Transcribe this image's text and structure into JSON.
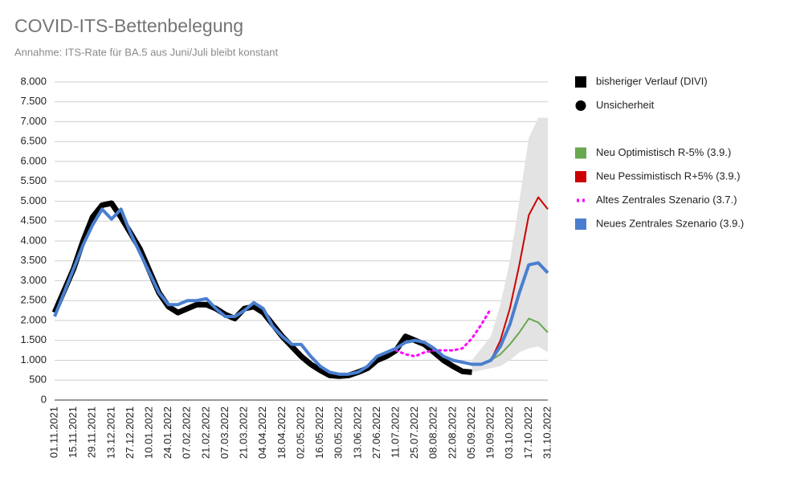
{
  "chart_data": {
    "type": "line",
    "title": "COVID-ITS-Bettenbelegung",
    "subtitle": "Annahme: ITS-Rate für BA.5 aus Juni/Juli bleibt konstant",
    "categories": [
      "01.11.2021",
      null,
      "15.11.2021",
      null,
      "29.11.2021",
      null,
      "13.12.2021",
      null,
      "27.12.2021",
      null,
      "10.01.2022",
      null,
      "24.01.2022",
      null,
      "07.02.2022",
      null,
      "21.02.2022",
      null,
      "07.03.2022",
      null,
      "21.03.2022",
      null,
      "04.04.2022",
      null,
      "18.04.2022",
      null,
      "02.05.2022",
      null,
      "16.05.2022",
      null,
      "30.05.2022",
      null,
      "13.06.2022",
      null,
      "27.06.2022",
      null,
      "11.07.2022",
      null,
      "25.07.2022",
      null,
      "08.08.2022",
      null,
      "22.08.2022",
      null,
      "05.09.2022",
      null,
      "19.09.2022",
      null,
      "03.10.2022",
      null,
      "17.10.2022",
      null,
      "31.10.2022"
    ],
    "ylim": [
      0,
      8000
    ],
    "yticks": [
      0,
      500,
      {
        "value": 1000,
        "label": "1.000"
      },
      {
        "value": 1500,
        "label": "1.500"
      },
      {
        "value": 2000,
        "label": "2.000"
      },
      {
        "value": 2500,
        "label": "2.500"
      },
      {
        "value": 3000,
        "label": "3.000"
      },
      {
        "value": 3500,
        "label": "3.500"
      },
      {
        "value": 4000,
        "label": "4.000"
      },
      {
        "value": 4500,
        "label": "4.500"
      },
      {
        "value": 5000,
        "label": "5.000"
      },
      {
        "value": 5500,
        "label": "5.500"
      },
      {
        "value": 6000,
        "label": "6.000"
      },
      {
        "value": 6500,
        "label": "6.500"
      },
      {
        "value": 7000,
        "label": "7.000"
      },
      {
        "value": 7500,
        "label": "7.500"
      },
      {
        "value": 8000,
        "label": "8.000"
      }
    ],
    "grid": true,
    "legend": "right",
    "series": [
      {
        "name": "bisheriger Verlauf (DIVI)",
        "color": "#000000",
        "legend_marker": "square",
        "values": [
          2200,
          2750,
          3300,
          4000,
          4600,
          4900,
          4950,
          4600,
          4200,
          3800,
          3250,
          2700,
          2350,
          2200,
          2300,
          2400,
          2400,
          2300,
          2150,
          2050,
          2300,
          2350,
          2200,
          1900,
          1600,
          1350,
          1100,
          900,
          750,
          620,
          600,
          620,
          700,
          800,
          1000,
          1100,
          1250,
          1600,
          1500,
          1400,
          1200,
          1000,
          850,
          720,
          700,
          null,
          null,
          null,
          null,
          null,
          null,
          null,
          null
        ]
      },
      {
        "name": "Unsicherheit",
        "color": "#e3e3e3",
        "legend_color": "#000000",
        "legend_marker": "circle",
        "values": [
          null,
          null,
          null,
          null,
          null,
          null,
          null,
          null,
          null,
          null,
          null,
          null,
          null,
          null,
          null,
          null,
          null,
          null,
          null,
          null,
          null,
          null,
          null,
          null,
          null,
          null,
          null,
          null,
          null,
          null,
          null,
          null,
          null,
          null,
          null,
          null,
          null,
          null,
          null,
          null,
          null,
          null,
          null,
          null,
          1000,
          1300,
          1600,
          2400,
          3500,
          5000,
          6600,
          7100,
          7100
        ],
        "lower": [
          null,
          null,
          null,
          null,
          null,
          null,
          null,
          null,
          null,
          null,
          null,
          null,
          null,
          null,
          null,
          null,
          null,
          null,
          null,
          null,
          null,
          null,
          null,
          null,
          null,
          null,
          null,
          null,
          null,
          null,
          null,
          null,
          null,
          null,
          null,
          null,
          null,
          null,
          null,
          null,
          null,
          null,
          null,
          null,
          700,
          750,
          800,
          850,
          1000,
          1200,
          1300,
          1350,
          1200
        ]
      },
      {
        "name": "Neu Optimistisch R-5% (3.9.)",
        "color": "#6aa84f",
        "legend_marker": "square",
        "values": [
          null,
          null,
          null,
          null,
          null,
          null,
          null,
          null,
          null,
          null,
          null,
          null,
          null,
          null,
          null,
          null,
          null,
          null,
          null,
          null,
          null,
          null,
          null,
          null,
          null,
          null,
          null,
          null,
          null,
          null,
          null,
          null,
          null,
          null,
          null,
          null,
          null,
          null,
          null,
          null,
          null,
          null,
          null,
          null,
          null,
          null,
          1000,
          1150,
          1400,
          1700,
          2050,
          1950,
          1700
        ]
      },
      {
        "name": "Neu Pessimistisch R+5% (3.9.)",
        "color": "#cc0000",
        "legend_marker": "square",
        "values": [
          null,
          null,
          null,
          null,
          null,
          null,
          null,
          null,
          null,
          null,
          null,
          null,
          null,
          null,
          null,
          null,
          null,
          null,
          null,
          null,
          null,
          null,
          null,
          null,
          null,
          null,
          null,
          null,
          null,
          null,
          null,
          null,
          null,
          null,
          null,
          null,
          null,
          null,
          null,
          null,
          null,
          null,
          null,
          null,
          null,
          null,
          1000,
          1500,
          2300,
          3400,
          4650,
          5100,
          4800
        ]
      },
      {
        "name": "Altes Zentrales Szenario (3.7.)",
        "color": "#ff00ff",
        "legend_marker": "dotted",
        "values": [
          null,
          null,
          null,
          null,
          null,
          null,
          null,
          null,
          null,
          null,
          null,
          null,
          null,
          null,
          null,
          null,
          null,
          null,
          null,
          null,
          null,
          null,
          null,
          null,
          null,
          null,
          null,
          null,
          null,
          null,
          null,
          null,
          null,
          null,
          null,
          null,
          1250,
          1150,
          1100,
          1200,
          1250,
          1250,
          1250,
          1300,
          1550,
          1900,
          2300,
          null,
          null,
          null,
          null,
          null,
          null
        ]
      },
      {
        "name": "Neues Zentrales Szenario (3.9.)",
        "color": "#4a7fd0",
        "legend_marker": "square",
        "values": [
          2100,
          2700,
          3300,
          3900,
          4400,
          4800,
          4550,
          4800,
          4200,
          3700,
          3200,
          2700,
          2400,
          2400,
          2500,
          2500,
          2550,
          2300,
          2100,
          2100,
          2250,
          2450,
          2300,
          1850,
          1600,
          1400,
          1400,
          1100,
          850,
          700,
          650,
          650,
          700,
          850,
          1100,
          1200,
          1300,
          1450,
          1500,
          1450,
          1300,
          1100,
          1000,
          950,
          900,
          900,
          1000,
          1350,
          1900,
          2700,
          3400,
          3450,
          3200
        ]
      }
    ]
  }
}
